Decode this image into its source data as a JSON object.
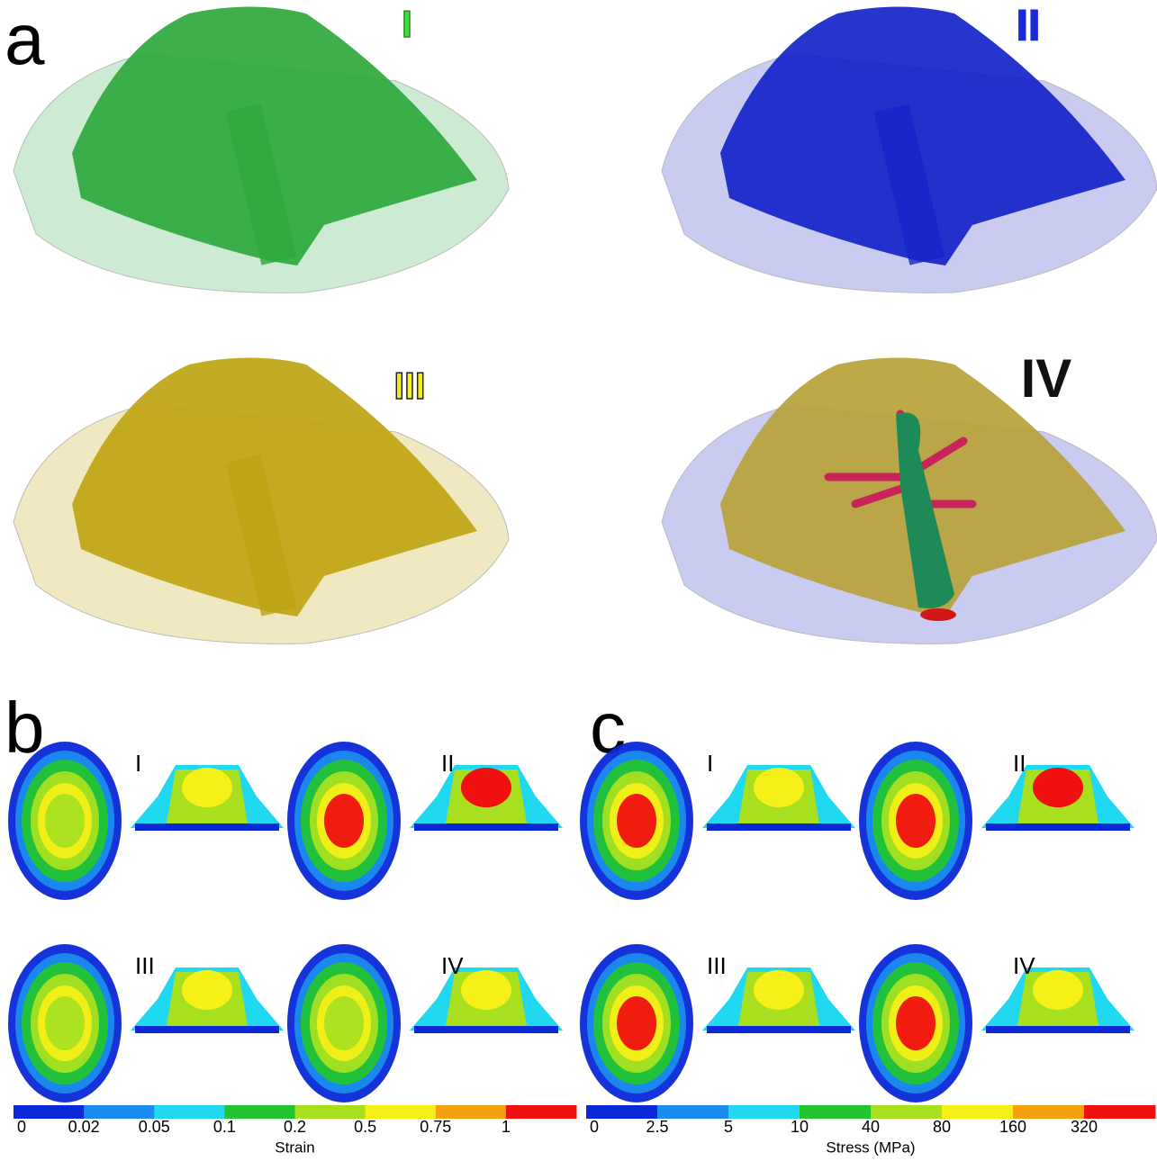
{
  "panels": [
    {
      "label": "a",
      "renders": [
        {
          "label": "I"
        },
        {
          "label": "II"
        },
        {
          "label": "III"
        },
        {
          "label": "IV"
        }
      ]
    },
    {
      "label": "b",
      "items": [
        "I",
        "II",
        "III",
        "IV"
      ],
      "colorbar": {
        "title": "Strain",
        "ticks": [
          "0",
          "0.02",
          "0.05",
          "0.1",
          "0.2",
          "0.5",
          "0.75",
          "1"
        ],
        "colors": [
          "#0a28d8",
          "#1a8cf0",
          "#20d8f0",
          "#22c430",
          "#a8e020",
          "#f4f018",
          "#f4a010",
          "#f01010"
        ]
      }
    },
    {
      "label": "c",
      "items": [
        "I",
        "II",
        "III",
        "IV"
      ],
      "colorbar": {
        "title": "Stress (MPa)",
        "ticks": [
          "0",
          "2.5",
          "5",
          "10",
          "40",
          "80",
          "160",
          "320"
        ],
        "colors": [
          "#0a28d8",
          "#1a8cf0",
          "#20d8f0",
          "#22c430",
          "#a8e020",
          "#f4f018",
          "#f4a010",
          "#f01010"
        ]
      }
    }
  ]
}
